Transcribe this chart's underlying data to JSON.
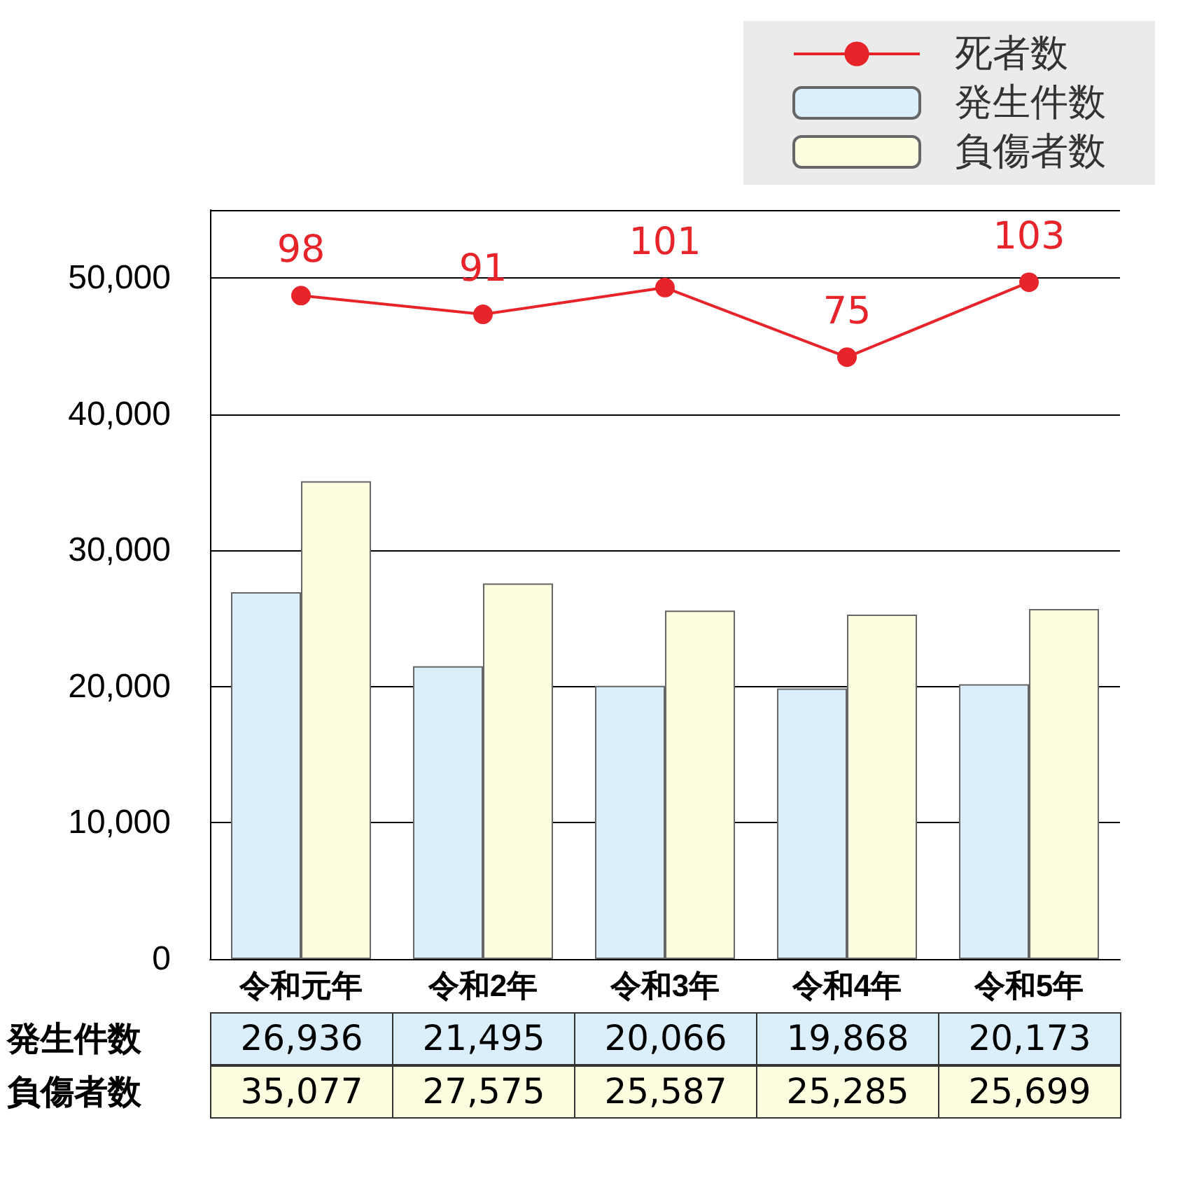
{
  "chart_data": {
    "type": "bar",
    "categories": [
      "令和元年",
      "令和2年",
      "令和3年",
      "令和4年",
      "令和5年"
    ],
    "series": [
      {
        "name": "死者数",
        "type": "line",
        "axis": "y2",
        "color": "#e8242b",
        "marker": "circle",
        "line_style": "solid",
        "values": [
          98,
          91,
          101,
          75,
          103
        ],
        "value_labels": [
          "98",
          "91",
          "101",
          "75",
          "103"
        ]
      },
      {
        "name": "発生件数",
        "color": "#dbeefb",
        "values": [
          26936,
          21495,
          20066,
          19868,
          20173
        ],
        "value_labels": [
          "26,936",
          "21,495",
          "20,066",
          "19,868",
          "20,173"
        ]
      },
      {
        "name": "負傷者数",
        "color": "#fdfde0",
        "values": [
          35077,
          27575,
          25587,
          25285,
          25699
        ],
        "value_labels": [
          "35,077",
          "27,575",
          "25,587",
          "25,285",
          "25,699"
        ]
      }
    ],
    "ylim": [
      0,
      55000
    ],
    "yticks": [
      {
        "value": 0,
        "label": "0"
      },
      {
        "value": 10000,
        "label": "10,000"
      },
      {
        "value": 20000,
        "label": "20,000"
      },
      {
        "value": 30000,
        "label": "30,000"
      },
      {
        "value": 40000,
        "label": "40,000"
      },
      {
        "value": 50000,
        "label": "50,000"
      }
    ],
    "y2lim": [
      -150,
      130
    ],
    "grid": "y",
    "legend": "top right"
  }
}
